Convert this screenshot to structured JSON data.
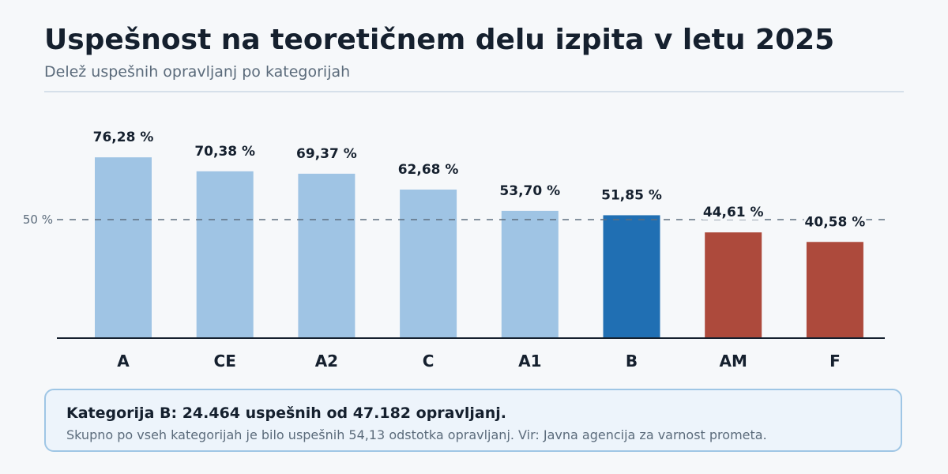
{
  "header": {
    "title": "Uspešnost na teoretičnem delu izpita v letu 2025",
    "subtitle": "Delež uspešnih opravljanj po kategorijah"
  },
  "chart_data": {
    "type": "bar",
    "categories": [
      "A",
      "CE",
      "A2",
      "C",
      "A1",
      "B",
      "AM",
      "F"
    ],
    "values": [
      76.28,
      70.38,
      69.37,
      62.68,
      53.7,
      51.85,
      44.61,
      40.58
    ],
    "value_labels": [
      "76,28 %",
      "70,38 %",
      "69,37 %",
      "62,68 %",
      "53,70 %",
      "51,85 %",
      "44,61 %",
      "40,58 %"
    ],
    "bar_colors": [
      "#9fc4e4",
      "#9fc4e4",
      "#9fc4e4",
      "#9fc4e4",
      "#9fc4e4",
      "#206fb3",
      "#ad4a3c",
      "#ad4a3c"
    ],
    "ylim": [
      0,
      100
    ],
    "reference_line": {
      "value": 50,
      "label": "50 %"
    },
    "title": "Uspešnost na teoretičnem delu izpita v letu 2025",
    "xlabel": "",
    "ylabel": "",
    "grid": false,
    "legend": "none"
  },
  "note": {
    "heading": "Kategorija B: 24.464 uspešnih od 47.182 opravljanj.",
    "text": "Skupno po vseh kategorijah je bilo uspešnih 54,13 odstotka opravljanj. Vir: Javna agencija za varnost prometa."
  }
}
